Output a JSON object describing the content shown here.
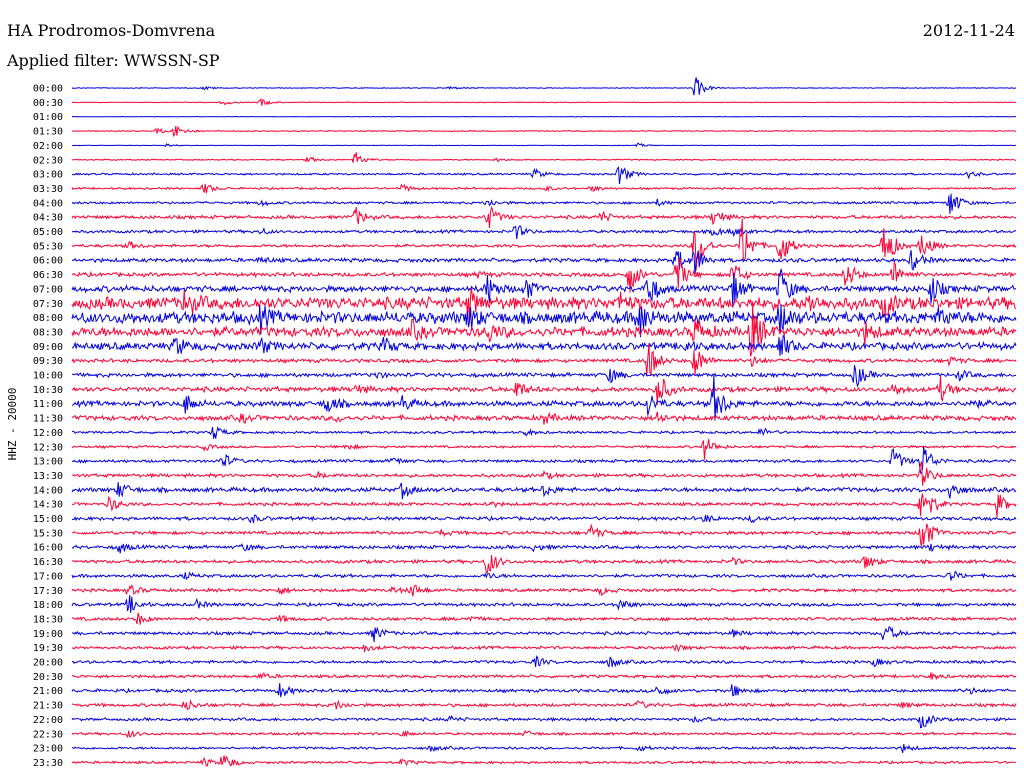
{
  "header": {
    "station": "HA Prodromos-Domvrena",
    "date": "2012-11-24",
    "filter": "Applied filter: WWSSN-SP"
  },
  "chart_data": {
    "type": "line",
    "title": "HA Prodromos-Domvrena",
    "ylabel": "HHZ - 20000",
    "colors": [
      "#0000dd",
      "#ff0033"
    ],
    "row_labels": [
      "00:00",
      "00:30",
      "01:00",
      "01:30",
      "02:00",
      "02:30",
      "03:00",
      "03:30",
      "04:00",
      "04:30",
      "05:00",
      "05:30",
      "06:00",
      "06:30",
      "07:00",
      "07:30",
      "08:00",
      "08:30",
      "09:00",
      "09:30",
      "10:00",
      "10:30",
      "11:00",
      "11:30",
      "12:00",
      "12:30",
      "13:00",
      "13:30",
      "14:00",
      "14:30",
      "15:00",
      "15:30",
      "16:00",
      "16:30",
      "17:00",
      "17:30",
      "18:00",
      "18:30",
      "19:00",
      "19:30",
      "20:00",
      "20:30",
      "21:00",
      "21:30",
      "22:00",
      "22:30",
      "23:00",
      "23:30"
    ],
    "noise": [
      0.3,
      0.3,
      0.2,
      0.4,
      0.2,
      0.5,
      0.8,
      0.8,
      1.0,
      1.4,
      1.2,
      1.2,
      1.6,
      1.6,
      2.5,
      5.0,
      5.0,
      4.0,
      3.0,
      1.5,
      1.6,
      2.0,
      2.2,
      2.0,
      1.0,
      1.0,
      1.2,
      1.4,
      1.8,
      1.3,
      1.4,
      1.4,
      1.4,
      1.4,
      1.3,
      1.3,
      1.3,
      1.3,
      1.3,
      1.2,
      1.2,
      1.2,
      1.3,
      1.3,
      1.2,
      1.0,
      1.0,
      1.0
    ],
    "events": [
      [
        [
          0.66,
          12
        ],
        [
          0.14,
          2
        ],
        [
          0.4,
          2
        ]
      ],
      [
        [
          0.2,
          4
        ],
        [
          0.16,
          3
        ]
      ],
      [],
      [
        [
          0.11,
          9
        ],
        [
          0.09,
          3
        ]
      ],
      [
        [
          0.1,
          2
        ],
        [
          0.6,
          2
        ]
      ],
      [
        [
          0.3,
          8
        ],
        [
          0.25,
          3
        ],
        [
          0.45,
          2
        ]
      ],
      [
        [
          0.58,
          12
        ],
        [
          0.49,
          5
        ],
        [
          0.95,
          3
        ]
      ],
      [
        [
          0.35,
          4
        ],
        [
          0.14,
          6
        ],
        [
          0.5,
          3
        ],
        [
          0.55,
          3
        ]
      ],
      [
        [
          0.93,
          16
        ],
        [
          0.2,
          3
        ],
        [
          0.44,
          4
        ],
        [
          0.62,
          3
        ]
      ],
      [
        [
          0.44,
          15
        ],
        [
          0.3,
          10
        ],
        [
          0.68,
          10
        ],
        [
          0.56,
          6
        ]
      ],
      [
        [
          0.47,
          8
        ],
        [
          0.68,
          5
        ],
        [
          0.7,
          4
        ],
        [
          0.2,
          3
        ]
      ],
      [
        [
          0.66,
          30
        ],
        [
          0.71,
          28
        ],
        [
          0.75,
          22
        ],
        [
          0.86,
          30
        ],
        [
          0.9,
          15
        ],
        [
          0.06,
          4
        ]
      ],
      [
        [
          0.66,
          14
        ],
        [
          0.64,
          14
        ],
        [
          0.89,
          12
        ],
        [
          0.2,
          3
        ]
      ],
      [
        [
          0.59,
          20
        ],
        [
          0.64,
          24
        ],
        [
          0.7,
          14
        ],
        [
          0.82,
          16
        ],
        [
          0.87,
          14
        ],
        [
          0.43,
          3
        ]
      ],
      [
        [
          0.44,
          16
        ],
        [
          0.48,
          12
        ],
        [
          0.61,
          20
        ],
        [
          0.7,
          18
        ],
        [
          0.75,
          24
        ],
        [
          0.91,
          15
        ]
      ],
      [
        [
          0.12,
          14
        ],
        [
          0.42,
          16
        ],
        [
          0.58,
          10
        ],
        [
          0.86,
          12
        ],
        [
          0.78,
          8
        ]
      ],
      [
        [
          0.6,
          22
        ],
        [
          0.75,
          15
        ],
        [
          0.2,
          10
        ],
        [
          0.42,
          12
        ],
        [
          0.92,
          10
        ]
      ],
      [
        [
          0.66,
          14
        ],
        [
          0.44,
          10
        ],
        [
          0.36,
          8
        ],
        [
          0.72,
          30
        ],
        [
          0.84,
          9
        ]
      ],
      [
        [
          0.11,
          10
        ],
        [
          0.2,
          8
        ],
        [
          0.33,
          8
        ],
        [
          0.75,
          14
        ],
        [
          0.65,
          5
        ]
      ],
      [
        [
          0.61,
          22
        ],
        [
          0.66,
          16
        ],
        [
          0.93,
          4
        ],
        [
          0.72,
          5
        ]
      ],
      [
        [
          0.83,
          14
        ],
        [
          0.57,
          8
        ],
        [
          0.32,
          4
        ],
        [
          0.94,
          5
        ]
      ],
      [
        [
          0.47,
          10
        ],
        [
          0.92,
          12
        ],
        [
          0.62,
          20
        ],
        [
          0.87,
          6
        ],
        [
          0.3,
          5
        ]
      ],
      [
        [
          0.12,
          10
        ],
        [
          0.27,
          10
        ],
        [
          0.35,
          8
        ],
        [
          0.61,
          12
        ],
        [
          0.68,
          26
        ],
        [
          0.95,
          6
        ]
      ],
      [
        [
          0.18,
          4
        ],
        [
          0.28,
          3
        ],
        [
          0.5,
          6
        ],
        [
          0.62,
          6
        ]
      ],
      [
        [
          0.15,
          8
        ],
        [
          0.48,
          3
        ],
        [
          0.73,
          5
        ]
      ],
      [
        [
          0.67,
          12
        ],
        [
          0.14,
          3
        ],
        [
          0.29,
          3
        ]
      ],
      [
        [
          0.87,
          14
        ],
        [
          0.16,
          8
        ],
        [
          0.34,
          4
        ],
        [
          0.9,
          22
        ]
      ],
      [
        [
          0.26,
          3
        ],
        [
          0.5,
          3
        ],
        [
          0.9,
          14
        ]
      ],
      [
        [
          0.35,
          8
        ],
        [
          0.5,
          6
        ],
        [
          0.05,
          9
        ],
        [
          0.93,
          10
        ]
      ],
      [
        [
          0.04,
          8
        ],
        [
          0.44,
          3
        ],
        [
          0.9,
          30
        ],
        [
          0.98,
          12
        ]
      ],
      [
        [
          0.19,
          4
        ],
        [
          0.67,
          4
        ],
        [
          0.72,
          3
        ]
      ],
      [
        [
          0.55,
          8
        ],
        [
          0.39,
          3
        ],
        [
          0.9,
          24
        ]
      ],
      [
        [
          0.05,
          6
        ],
        [
          0.18,
          4
        ],
        [
          0.49,
          4
        ],
        [
          0.91,
          4
        ]
      ],
      [
        [
          0.44,
          16
        ],
        [
          0.84,
          8
        ],
        [
          0.7,
          3
        ]
      ],
      [
        [
          0.12,
          3
        ],
        [
          0.44,
          3
        ],
        [
          0.93,
          6
        ]
      ],
      [
        [
          0.06,
          6
        ],
        [
          0.22,
          4
        ],
        [
          0.36,
          7
        ],
        [
          0.56,
          4
        ],
        [
          0.34,
          3
        ]
      ],
      [
        [
          0.06,
          10
        ],
        [
          0.13,
          5
        ],
        [
          0.58,
          6
        ]
      ],
      [
        [
          0.07,
          6
        ],
        [
          0.22,
          3
        ],
        [
          0.42,
          3
        ]
      ],
      [
        [
          0.32,
          8
        ],
        [
          0.86,
          12
        ],
        [
          0.7,
          3
        ]
      ],
      [
        [
          0.31,
          4
        ],
        [
          0.64,
          3
        ]
      ],
      [
        [
          0.57,
          6
        ],
        [
          0.49,
          6
        ],
        [
          0.85,
          4
        ]
      ],
      [
        [
          0.2,
          3
        ],
        [
          0.91,
          3
        ]
      ],
      [
        [
          0.22,
          8
        ],
        [
          0.62,
          6
        ],
        [
          0.7,
          7
        ],
        [
          0.95,
          3
        ]
      ],
      [
        [
          0.12,
          6
        ],
        [
          0.28,
          4
        ],
        [
          0.6,
          4
        ],
        [
          0.88,
          3
        ]
      ],
      [
        [
          0.4,
          3
        ],
        [
          0.9,
          10
        ],
        [
          0.66,
          3
        ]
      ],
      [
        [
          0.35,
          3
        ],
        [
          0.06,
          4
        ],
        [
          0.48,
          3
        ]
      ],
      [
        [
          0.88,
          4
        ],
        [
          0.6,
          3
        ],
        [
          0.38,
          3
        ]
      ],
      [
        [
          0.16,
          10
        ],
        [
          0.14,
          4
        ],
        [
          0.35,
          3
        ]
      ]
    ]
  }
}
